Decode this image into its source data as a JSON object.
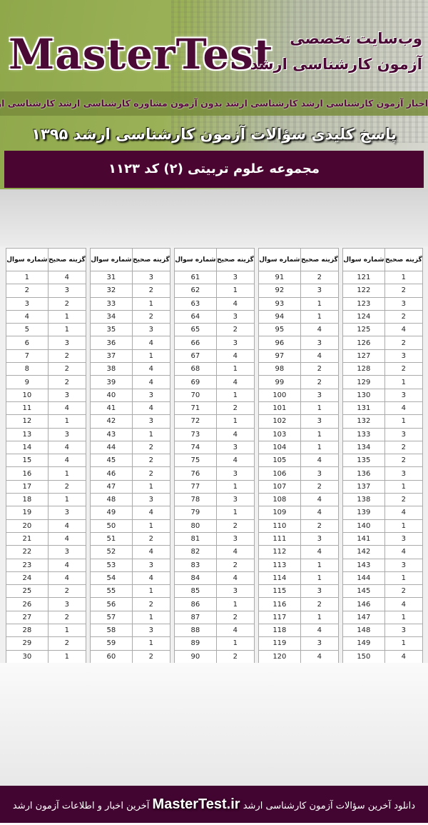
{
  "banner": {
    "logo": "MasterTest",
    "tagline_1": "وب‌سایت تخصصی",
    "tagline_2": "آزمون کارشناسی ارشد",
    "news_strip": "اخبار آزمون کارشناسی ارشد  کارشناسی ارشد بدون آزمون  مشاوره کارشناسی ارشد  کارشناسی ارشد خارج از کشور",
    "title": "پاسخ کلیدی سؤالات آزمون کارشناسی ارشد ۱۳۹۵",
    "subject": "مجموعه علوم تربیتی (۲)  کد ۱۱۲۳"
  },
  "table_headers": {
    "question": "شماره سوال",
    "answer": "گزینه صحیح"
  },
  "answer_key": [
    {
      "questions": [
        1,
        2,
        3,
        4,
        5,
        6,
        7,
        8,
        9,
        10,
        11,
        12,
        13,
        14,
        15,
        16,
        17,
        18,
        19,
        20,
        21,
        22,
        23,
        24,
        25,
        26,
        27,
        28,
        29,
        30
      ],
      "answers": [
        4,
        3,
        2,
        1,
        1,
        3,
        2,
        2,
        2,
        3,
        4,
        1,
        3,
        4,
        4,
        1,
        2,
        1,
        3,
        4,
        4,
        3,
        4,
        4,
        2,
        3,
        2,
        1,
        2,
        1
      ]
    },
    {
      "questions": [
        31,
        32,
        33,
        34,
        35,
        36,
        37,
        38,
        39,
        40,
        41,
        42,
        43,
        44,
        45,
        46,
        47,
        48,
        49,
        50,
        51,
        52,
        53,
        54,
        55,
        56,
        57,
        58,
        59,
        60
      ],
      "answers": [
        3,
        2,
        1,
        2,
        3,
        4,
        1,
        4,
        4,
        3,
        4,
        3,
        1,
        2,
        2,
        2,
        1,
        3,
        4,
        1,
        2,
        4,
        3,
        4,
        1,
        2,
        1,
        3,
        1,
        2
      ]
    },
    {
      "questions": [
        61,
        62,
        63,
        64,
        65,
        66,
        67,
        68,
        69,
        70,
        71,
        72,
        73,
        74,
        75,
        76,
        77,
        78,
        79,
        80,
        81,
        82,
        83,
        84,
        85,
        86,
        87,
        88,
        89,
        90
      ],
      "answers": [
        3,
        1,
        4,
        3,
        2,
        3,
        4,
        1,
        4,
        1,
        2,
        1,
        4,
        3,
        4,
        3,
        1,
        3,
        1,
        2,
        3,
        4,
        2,
        4,
        3,
        1,
        2,
        4,
        1,
        2
      ]
    },
    {
      "questions": [
        91,
        92,
        93,
        94,
        95,
        96,
        97,
        98,
        99,
        100,
        101,
        102,
        103,
        104,
        105,
        106,
        107,
        108,
        109,
        110,
        111,
        112,
        113,
        114,
        115,
        116,
        117,
        118,
        119,
        120
      ],
      "answers": [
        2,
        3,
        1,
        1,
        4,
        3,
        4,
        2,
        2,
        3,
        1,
        3,
        1,
        1,
        4,
        3,
        2,
        4,
        4,
        2,
        3,
        4,
        1,
        1,
        3,
        2,
        1,
        4,
        3,
        4
      ]
    },
    {
      "questions": [
        121,
        122,
        123,
        124,
        125,
        126,
        127,
        128,
        129,
        130,
        131,
        132,
        133,
        134,
        135,
        136,
        137,
        138,
        139,
        140,
        141,
        142,
        143,
        144,
        145,
        146,
        147,
        148,
        149,
        150
      ],
      "answers": [
        1,
        2,
        3,
        2,
        4,
        2,
        3,
        2,
        1,
        3,
        4,
        1,
        3,
        2,
        2,
        3,
        1,
        2,
        4,
        1,
        3,
        4,
        3,
        1,
        2,
        4,
        1,
        3,
        1,
        4
      ]
    }
  ],
  "footer": {
    "text_before": "دانلود آخرین سؤالات آزمون کارشناسی ارشد",
    "site": "MasterTest.ir",
    "text_after": "آخرین اخبار و اطلاعات آزمون ارشد"
  },
  "colors": {
    "brand_purple": "#4a0530",
    "banner_green": "#9bb158"
  }
}
